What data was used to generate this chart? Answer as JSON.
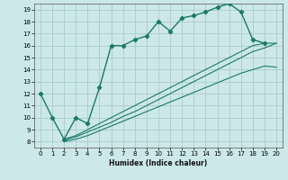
{
  "xlabel": "Humidex (Indice chaleur)",
  "xlim": [
    -0.5,
    20.5
  ],
  "ylim": [
    7.5,
    19.5
  ],
  "xticks": [
    0,
    1,
    2,
    3,
    4,
    5,
    6,
    7,
    8,
    9,
    10,
    11,
    12,
    13,
    14,
    15,
    16,
    17,
    18,
    19,
    20
  ],
  "yticks": [
    8,
    9,
    10,
    11,
    12,
    13,
    14,
    15,
    16,
    17,
    18,
    19
  ],
  "bg_color": "#cce8e8",
  "grid_color": "#aacccc",
  "line_color": "#1a7a6a",
  "main_curve_x": [
    0,
    1,
    2,
    3,
    4,
    5,
    6,
    7,
    8,
    9,
    10,
    11,
    12,
    13,
    14,
    15,
    16,
    17,
    18,
    19
  ],
  "main_curve_y": [
    12.0,
    10.0,
    8.2,
    10.0,
    9.5,
    12.5,
    16.0,
    16.0,
    16.5,
    16.8,
    18.0,
    17.2,
    18.3,
    18.5,
    18.8,
    19.2,
    19.5,
    18.8,
    16.5,
    16.2
  ],
  "diag1_x": [
    2,
    3,
    4,
    5,
    6,
    7,
    8,
    9,
    10,
    11,
    12,
    13,
    14,
    15,
    16,
    17,
    18,
    19,
    20
  ],
  "diag1_y": [
    8.0,
    8.2,
    8.5,
    8.9,
    9.3,
    9.7,
    10.1,
    10.5,
    10.9,
    11.3,
    11.7,
    12.1,
    12.5,
    12.9,
    13.3,
    13.7,
    14.0,
    14.3,
    14.2
  ],
  "diag2_x": [
    2,
    3,
    4,
    5,
    6,
    7,
    8,
    9,
    10,
    11,
    12,
    13,
    14,
    15,
    16,
    17,
    18,
    19,
    20
  ],
  "diag2_y": [
    8.1,
    8.4,
    8.8,
    9.2,
    9.6,
    10.1,
    10.5,
    11.0,
    11.5,
    12.0,
    12.5,
    13.0,
    13.5,
    14.0,
    14.5,
    15.0,
    15.5,
    15.8,
    16.2
  ],
  "diag3_x": [
    2,
    3,
    4,
    5,
    6,
    7,
    8,
    9,
    10,
    11,
    12,
    13,
    14,
    15,
    16,
    17,
    18,
    19,
    20
  ],
  "diag3_y": [
    8.2,
    8.5,
    9.0,
    9.5,
    10.0,
    10.5,
    11.0,
    11.5,
    12.0,
    12.5,
    13.0,
    13.5,
    14.0,
    14.5,
    15.0,
    15.5,
    16.0,
    16.2,
    16.2
  ]
}
